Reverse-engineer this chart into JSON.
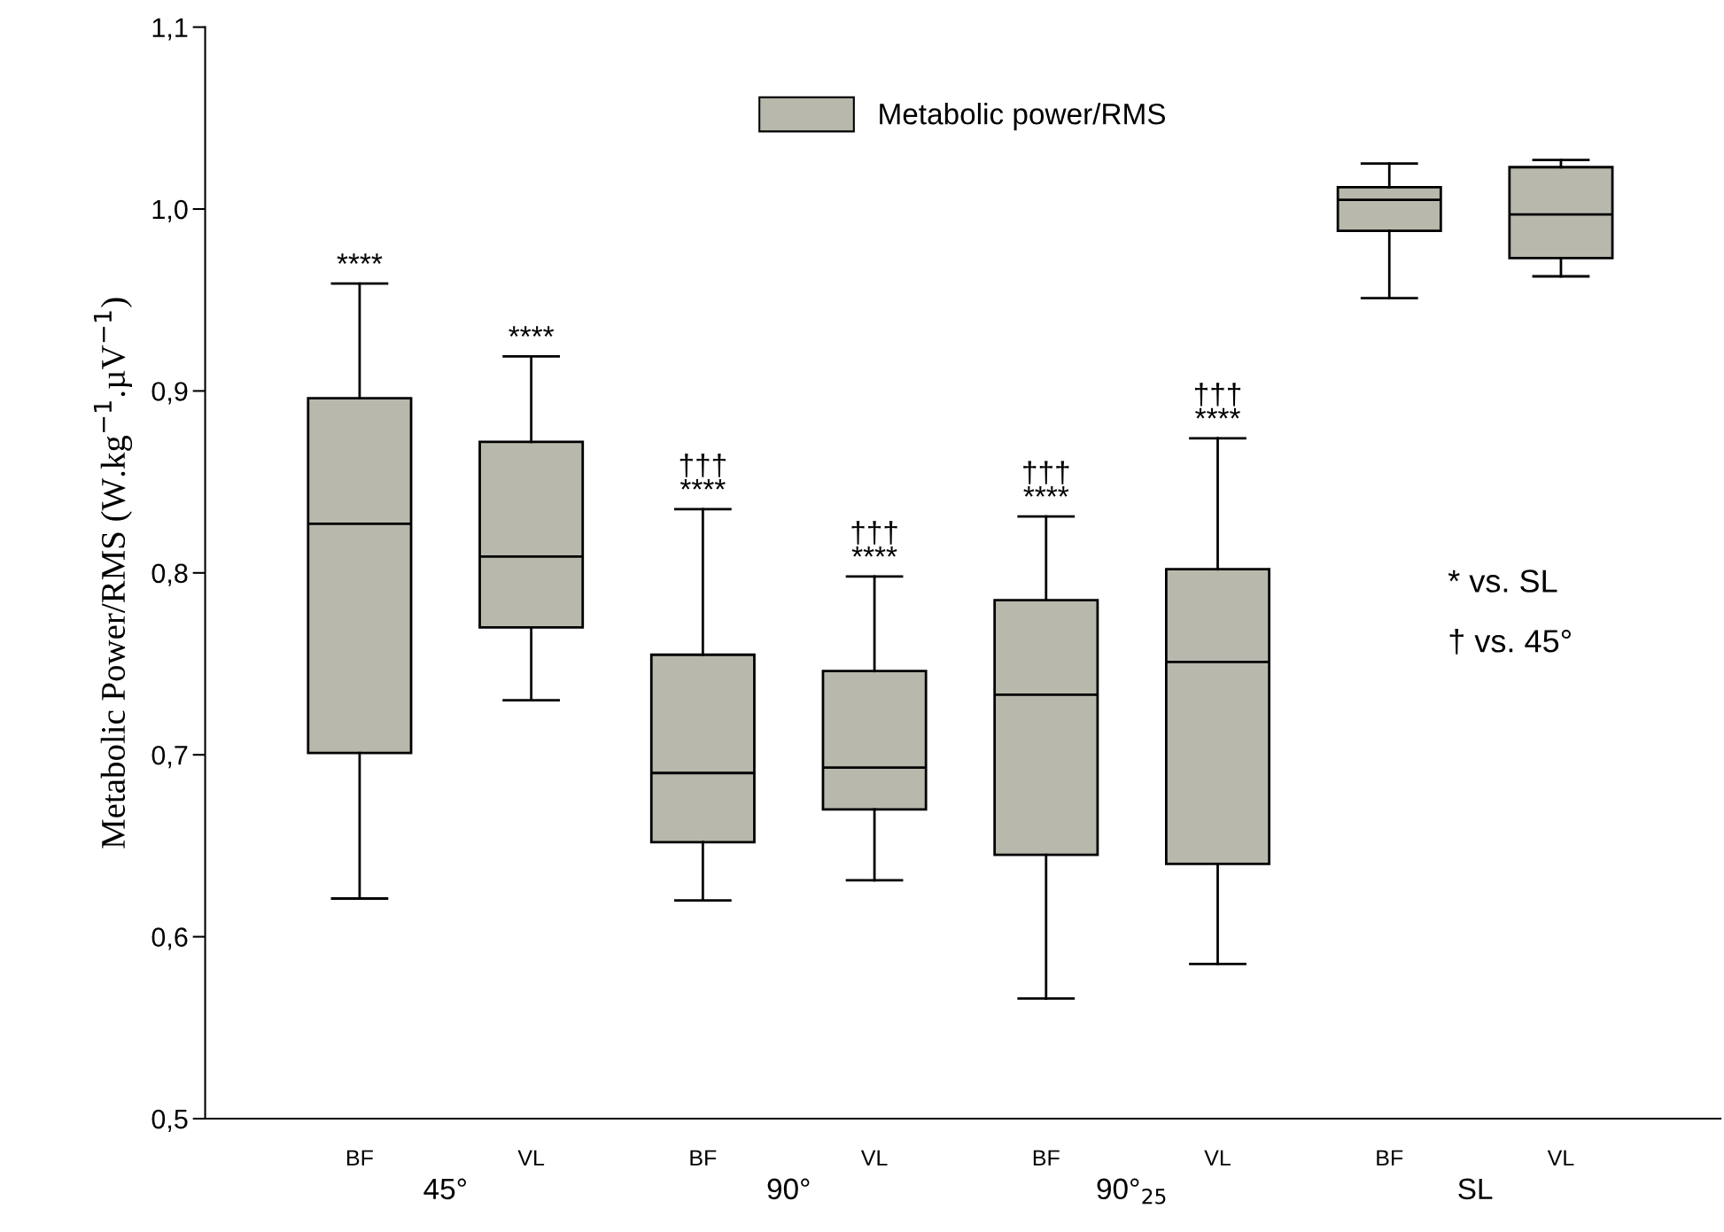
{
  "chart_data": {
    "type": "box",
    "ylabel": "Metabolic Power/RMS (W.kg$^{−1}$.µV$^{−1}$)",
    "categories": [
      "BF",
      "VL",
      "BF",
      "VL",
      "BF",
      "VL",
      "BF",
      "VL"
    ],
    "ylim": [
      0.5,
      1.1
    ],
    "yticks": [
      {
        "value": 0.5,
        "label": "0,5"
      },
      {
        "value": 0.6,
        "label": "0,6"
      },
      {
        "value": 0.7,
        "label": "0,7"
      },
      {
        "value": 0.8,
        "label": "0,8"
      },
      {
        "value": 0.9,
        "label": "0,9"
      },
      {
        "value": 1.0,
        "label": "1,0"
      },
      {
        "value": 1.1,
        "label": "1,1"
      }
    ],
    "series": [
      {
        "name": "Metabolic power/RMS",
        "color": "#b8b8ac",
        "boxes": [
          {
            "low": 0.621,
            "q1": 0.701,
            "median": 0.827,
            "q3": 0.896,
            "high": 0.959
          },
          {
            "low": 0.73,
            "q1": 0.77,
            "median": 0.809,
            "q3": 0.872,
            "high": 0.919
          },
          {
            "low": 0.62,
            "q1": 0.652,
            "median": 0.69,
            "q3": 0.755,
            "high": 0.835
          },
          {
            "low": 0.631,
            "q1": 0.67,
            "median": 0.693,
            "q3": 0.746,
            "high": 0.798
          },
          {
            "low": 0.566,
            "q1": 0.645,
            "median": 0.733,
            "q3": 0.785,
            "high": 0.831
          },
          {
            "low": 0.585,
            "q1": 0.64,
            "median": 0.751,
            "q3": 0.802,
            "high": 0.874
          },
          {
            "low": 0.951,
            "q1": 0.988,
            "median": 1.005,
            "q3": 1.012,
            "high": 1.025
          },
          {
            "low": 0.963,
            "q1": 0.973,
            "median": 0.997,
            "q3": 1.023,
            "high": 1.027
          }
        ]
      }
    ],
    "legend": "top",
    "grid": false,
    "annotations": [
      "45°",
      "90°",
      "90°$_{25}$",
      "SL",
      "****",
      "****",
      "†††\n****",
      "†††\n****",
      "†††\n****",
      "†††\n****",
      "* vs. SL",
      "† vs. 45°"
    ]
  }
}
